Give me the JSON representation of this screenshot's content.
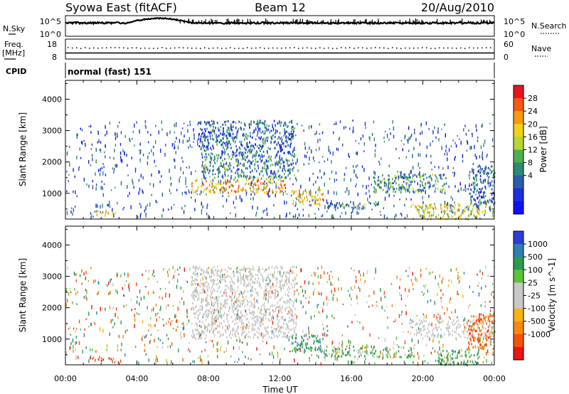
{
  "header": {
    "station": "Syowa East (fitACF)",
    "beam": "Beam 12",
    "date": "20/Aug/2010"
  },
  "noise_panel": {
    "left_label": "N.Sky",
    "right_label": "N.Search",
    "left_ticks": [
      "10^5",
      "10^0"
    ],
    "right_ticks": [
      "10^5",
      "10^0"
    ]
  },
  "freq_panel": {
    "left_label": "Freq.",
    "left_unit": "[MHz]",
    "right_label": "Nave",
    "left_ticks": [
      "18",
      "8"
    ],
    "right_ticks": [
      "60",
      "0"
    ]
  },
  "cpid": {
    "label": "CPID",
    "value": "normal (fast) 151"
  },
  "chart_data": [
    {
      "type": "heatmap",
      "name": "power",
      "ylabel": "Slant Range [km]",
      "ylim": [
        180,
        4600
      ],
      "xlim": [
        0,
        24
      ],
      "yticks": [
        1000,
        2000,
        3000,
        4000
      ],
      "colorbar": {
        "label": "Power [dB]",
        "ticks": [
          "28",
          "24",
          "20",
          "16",
          "12",
          "8",
          "4"
        ],
        "colors": [
          "#e8141c",
          "#f45a14",
          "#f59a12",
          "#f2d216",
          "#b6d636",
          "#4fae52",
          "#2e8a72",
          "#2a5ea8",
          "#1e2ee0",
          "#1010f4"
        ]
      },
      "regions": [
        {
          "t0": 1.4,
          "t1": 2.8,
          "r0": 320,
          "r1": 480,
          "v": 20
        },
        {
          "t0": 7.0,
          "t1": 12.3,
          "r0": 1050,
          "r1": 1500,
          "v": 22
        },
        {
          "t0": 7.6,
          "t1": 12.8,
          "r0": 1500,
          "r1": 2300,
          "v": 10
        },
        {
          "t0": 7.4,
          "t1": 12.8,
          "r0": 2300,
          "r1": 3350,
          "v": 8
        },
        {
          "t0": 12.6,
          "t1": 14.4,
          "r0": 650,
          "r1": 1150,
          "v": 20
        },
        {
          "t0": 14.4,
          "t1": 17.5,
          "r0": 550,
          "r1": 780,
          "v": 10
        },
        {
          "t0": 17.2,
          "t1": 21.3,
          "r0": 1050,
          "r1": 1650,
          "v": 12
        },
        {
          "t0": 19.3,
          "t1": 24.0,
          "r0": 200,
          "r1": 700,
          "v": 18
        },
        {
          "t0": 22.5,
          "t1": 24.0,
          "r0": 700,
          "r1": 1900,
          "v": 8
        }
      ]
    },
    {
      "type": "heatmap",
      "name": "velocity",
      "ylabel": "Slant Range [km]",
      "xlabel": "Time UT",
      "ylim": [
        180,
        4600
      ],
      "xlim": [
        0,
        24
      ],
      "yticks": [
        1000,
        2000,
        3000,
        4000
      ],
      "xticks": [
        "00:00",
        "04:00",
        "08:00",
        "12:00",
        "16:00",
        "20:00",
        "00:00"
      ],
      "colorbar": {
        "label": "Velocity [m s^-1]",
        "ticks": [
          "1000",
          "500",
          "100",
          "25",
          "-25",
          "-100",
          "-500",
          "-1000"
        ],
        "colors": [
          "#2c3fd2",
          "#2f7fb0",
          "#2e9a50",
          "#5cc23c",
          "#c8c8c8",
          "#c8c8c8",
          "#f4b418",
          "#f48a10",
          "#f4520c",
          "#ec1414"
        ]
      },
      "regions": [
        {
          "t0": 1.3,
          "t1": 2.8,
          "r0": 330,
          "r1": 470,
          "v": -400
        },
        {
          "t0": 7.0,
          "t1": 12.9,
          "r0": 1050,
          "r1": 3350,
          "v": 0
        },
        {
          "t0": 12.6,
          "t1": 14.4,
          "r0": 600,
          "r1": 1150,
          "v": 400
        },
        {
          "t0": 14.4,
          "t1": 19.5,
          "r0": 450,
          "r1": 800,
          "v": 200
        },
        {
          "t0": 19.2,
          "t1": 24.0,
          "r0": 1050,
          "r1": 1650,
          "v": 0
        },
        {
          "t0": 20.8,
          "t1": 23.2,
          "r0": 200,
          "r1": 700,
          "v": 300
        },
        {
          "t0": 22.5,
          "t1": 24.0,
          "r0": 700,
          "r1": 1850,
          "v": -300
        }
      ]
    }
  ]
}
